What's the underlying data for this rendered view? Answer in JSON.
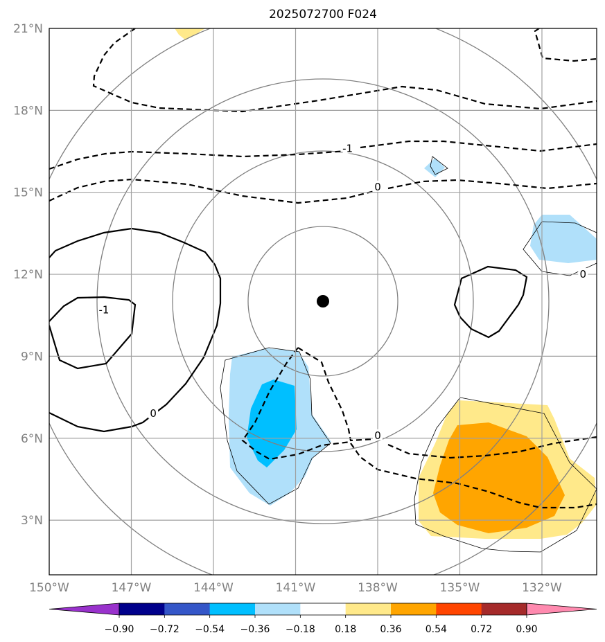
{
  "title": "2025072700 F024",
  "chart_data": {
    "type": "map",
    "title": "2025072700 F024",
    "lon_range": [
      -150,
      -130
    ],
    "lat_range": [
      1,
      21
    ],
    "lon_ticks": [
      -150,
      -147,
      -144,
      -141,
      -138,
      -135,
      -132
    ],
    "lon_tick_labels": [
      "150°W",
      "147°W",
      "144°W",
      "141°W",
      "138°W",
      "135°W",
      "132°W"
    ],
    "lat_ticks": [
      3,
      6,
      9,
      12,
      15,
      18,
      21
    ],
    "lat_tick_labels": [
      "3°N",
      "6°N",
      "9°N",
      "12°N",
      "15°N",
      "18°N",
      "21°N"
    ],
    "grid": true,
    "center_marker": {
      "lon": -140,
      "lat": 11.1
    },
    "range_rings_deg": [
      2.75,
      5.5,
      8.25,
      11
    ],
    "contour_labels": [
      {
        "text": "-1",
        "lon": -148,
        "lat": 10.7
      },
      {
        "text": "-1",
        "lon": -139.1,
        "lat": 16.6
      },
      {
        "text": "0",
        "lon": -138,
        "lat": 15.2
      },
      {
        "text": "0",
        "lon": -146.2,
        "lat": 6.9
      },
      {
        "text": "0",
        "lon": -138,
        "lat": 6.1
      },
      {
        "text": "0",
        "lon": -130.5,
        "lat": 12
      }
    ],
    "colorbar": {
      "levels": [
        -0.9,
        -0.72,
        -0.54,
        -0.36,
        -0.18,
        0.18,
        0.36,
        0.54,
        0.72,
        0.9
      ],
      "tick_labels": [
        "−0.90",
        "−0.72",
        "−0.54",
        "−0.36",
        "−0.18",
        "0.18",
        "0.36",
        "0.54",
        "0.72",
        "0.90"
      ],
      "colors": [
        "#9932cc",
        "#00008b",
        "#3456c8",
        "#00bfff",
        "#b0e0fa",
        "#ffffff",
        "#ffe98a",
        "#ffa500",
        "#ff4500",
        "#a52a2a",
        "#ff8aaf"
      ],
      "extend": "both"
    }
  }
}
